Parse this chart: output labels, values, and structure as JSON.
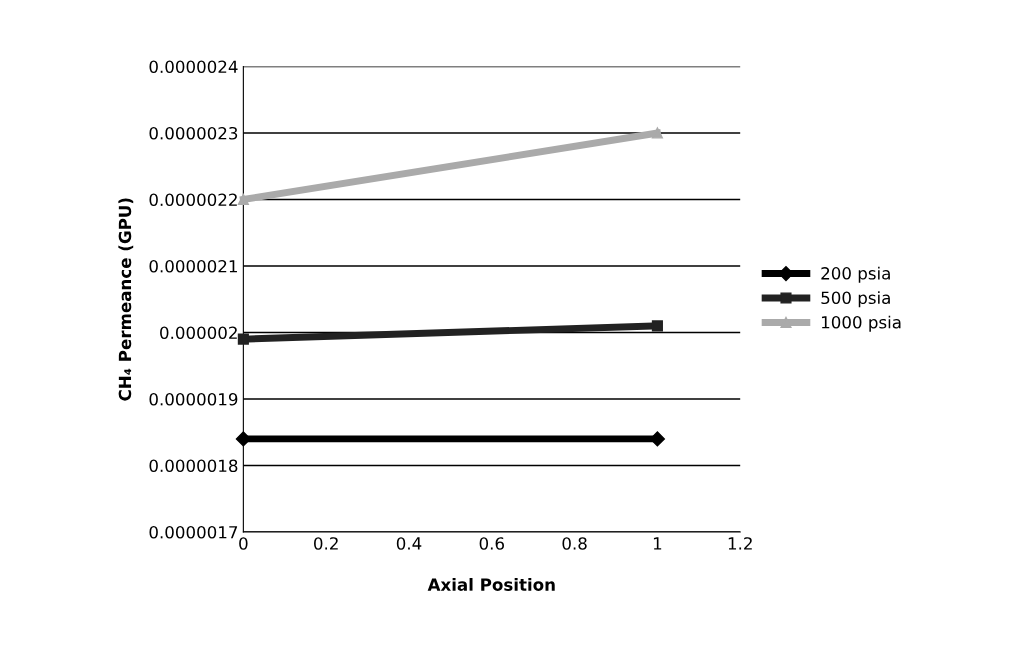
{
  "chart_data": {
    "type": "line",
    "xlabel": "Axial Position",
    "ylabel": "CH₄ Permeance (GPU)",
    "x": [
      0,
      1
    ],
    "xlim": [
      0,
      1.2
    ],
    "xticks": [
      0,
      0.2,
      0.4,
      0.6,
      0.8,
      1,
      1.2
    ],
    "ylim": [
      1.7e-06,
      2.4e-06
    ],
    "yticks": [
      {
        "value": 1.7e-06,
        "label": "0.0000017"
      },
      {
        "value": 1.8e-06,
        "label": "0.0000018"
      },
      {
        "value": 1.9e-06,
        "label": "0.0000019"
      },
      {
        "value": 2e-06,
        "label": "0.000002"
      },
      {
        "value": 2.1e-06,
        "label": "0.0000021"
      },
      {
        "value": 2.2e-06,
        "label": "0.0000022"
      },
      {
        "value": 2.3e-06,
        "label": "0.0000023"
      },
      {
        "value": 2.4e-06,
        "label": "0.0000024"
      }
    ],
    "grid": "y",
    "legend": "right",
    "series": [
      {
        "name": "200 psia",
        "color": "#000000",
        "marker": "diamond",
        "values": [
          1.84e-06,
          1.84e-06
        ]
      },
      {
        "name": "500 psia",
        "color": "#222222",
        "marker": "square",
        "values": [
          1.99e-06,
          2.01e-06
        ]
      },
      {
        "name": "1000 psia",
        "color": "#aaaaaa",
        "marker": "triangle",
        "values": [
          2.2e-06,
          2.3e-06
        ]
      }
    ]
  }
}
